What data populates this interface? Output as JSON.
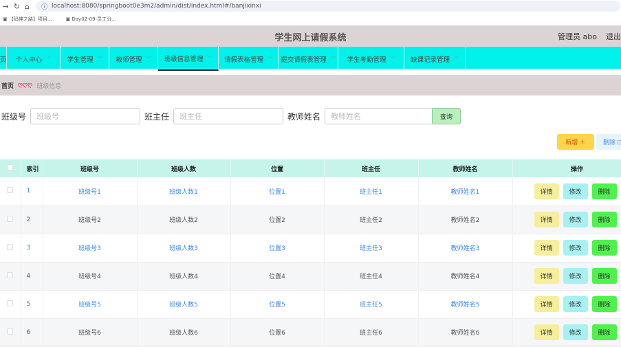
{
  "browser": {
    "url": "localhost:8080/springboot0e3m2/admin/dist/index.html#/banjixinxi",
    "bookmarks": [
      "【码神之路】项目...",
      "Day02-09-员工分..."
    ]
  },
  "header": {
    "title": "学生网上请假系统",
    "user": "管理员 abo",
    "logout": "退出"
  },
  "nav": [
    {
      "label": "页",
      "chev": false
    },
    {
      "label": "个人中心",
      "chev": true
    },
    {
      "label": "学生管理",
      "chev": true
    },
    {
      "label": "教师管理",
      "chev": true
    },
    {
      "label": "班级信息管理",
      "chev": true,
      "active": true
    },
    {
      "label": "请假表格管理",
      "chev": true
    },
    {
      "label": "提交请假表管理",
      "chev": true
    },
    {
      "label": "学生考勤管理",
      "chev": true
    },
    {
      "label": "缺课记录管理",
      "chev": true
    }
  ],
  "breadcrumb": {
    "home": "首页",
    "sep": "ღღღ",
    "current": "班级信息"
  },
  "search": {
    "f1_label": "班级号",
    "f1_ph": "班级号",
    "f2_label": "班主任",
    "f2_ph": "班主任",
    "f3_label": "教师姓名",
    "f3_ph": "教师姓名",
    "query": "查询"
  },
  "actions": {
    "add": "新增 ＋",
    "delete": "删除 ⊡"
  },
  "table": {
    "headers": [
      "索引",
      "班级号",
      "班级人数",
      "位置",
      "班主任",
      "教师姓名",
      "操作"
    ],
    "rows": [
      [
        "1",
        "班级号1",
        "班级人数1",
        "位置1",
        "班主任1",
        "教师姓名1"
      ],
      [
        "2",
        "班级号2",
        "班级人数2",
        "位置2",
        "班主任2",
        "教师姓名2"
      ],
      [
        "3",
        "班级号3",
        "班级人数3",
        "位置3",
        "班主任3",
        "教师姓名3"
      ],
      [
        "4",
        "班级号4",
        "班级人数4",
        "位置4",
        "班主任4",
        "教师姓名4"
      ],
      [
        "5",
        "班级号5",
        "班级人数5",
        "位置5",
        "班主任5",
        "教师姓名5"
      ],
      [
        "6",
        "班级号6",
        "班级人数6",
        "位置6",
        "班主任6",
        "教师姓名6"
      ]
    ],
    "ops": [
      "详情",
      "修改",
      "删除"
    ]
  },
  "colors": {
    "nav": "#00f2ea",
    "header": "#dcd4d4",
    "th": "#c5f4ea",
    "link": "#3a86e8"
  }
}
